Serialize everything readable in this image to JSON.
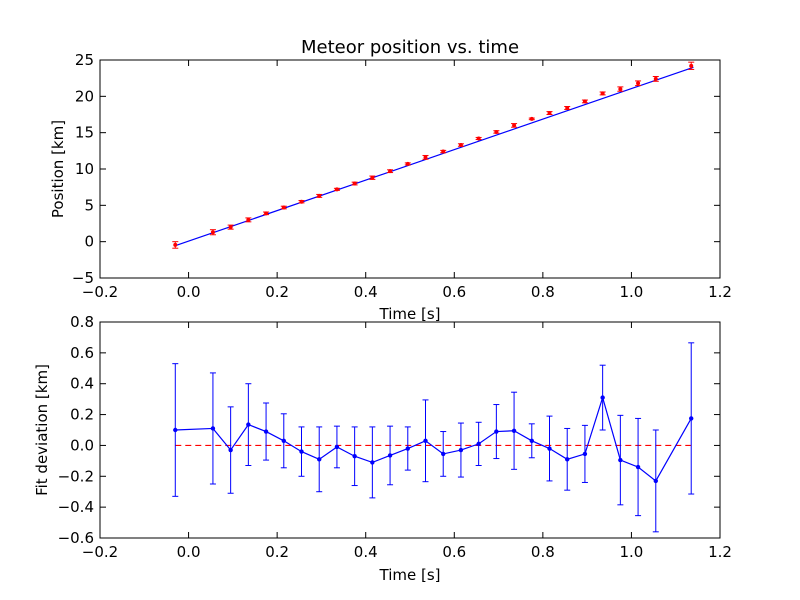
{
  "chart_data": [
    {
      "type": "scatter",
      "title": "Meteor position vs. time",
      "xlabel": "Time [s]",
      "ylabel": "Position [km]",
      "xlim": [
        -0.2,
        1.2
      ],
      "ylim": [
        -5,
        25
      ],
      "xticks": [
        "−0.2",
        "0.0",
        "0.2",
        "0.4",
        "0.6",
        "0.8",
        "1.0",
        "1.2"
      ],
      "yticks": [
        "−5",
        "0",
        "5",
        "10",
        "15",
        "20",
        "25"
      ],
      "grid": false,
      "colors": {
        "points": "#ff0000",
        "errorbars": "#ff0000",
        "fit_line": "#0000ff"
      },
      "fit_line": {
        "x": [
          -0.03,
          1.14
        ],
        "y": [
          -0.55,
          24.0
        ]
      },
      "points": {
        "x": [
          -0.03,
          0.055,
          0.095,
          0.135,
          0.175,
          0.215,
          0.255,
          0.295,
          0.335,
          0.375,
          0.415,
          0.455,
          0.495,
          0.535,
          0.575,
          0.615,
          0.655,
          0.695,
          0.735,
          0.775,
          0.815,
          0.855,
          0.895,
          0.935,
          0.975,
          1.015,
          1.055,
          1.135
        ],
        "y": [
          -0.45,
          1.3,
          2.0,
          3.0,
          3.9,
          4.7,
          5.5,
          6.3,
          7.2,
          8.0,
          8.8,
          9.7,
          10.7,
          11.6,
          12.4,
          13.3,
          14.2,
          15.1,
          16.0,
          16.9,
          17.7,
          18.4,
          19.3,
          20.4,
          21.0,
          21.8,
          22.4,
          24.2
        ],
        "yerr": [
          0.45,
          0.35,
          0.28,
          0.27,
          0.18,
          0.18,
          0.16,
          0.2,
          0.14,
          0.19,
          0.23,
          0.19,
          0.14,
          0.26,
          0.16,
          0.17,
          0.14,
          0.17,
          0.25,
          0.11,
          0.2,
          0.2,
          0.19,
          0.2,
          0.3,
          0.32,
          0.33,
          0.5
        ]
      }
    },
    {
      "type": "line",
      "xlabel": "Time [s]",
      "ylabel": "Fit deviation [km]",
      "xlim": [
        -0.2,
        1.2
      ],
      "ylim": [
        -0.6,
        0.8
      ],
      "xticks": [
        "−0.2",
        "0.0",
        "0.2",
        "0.4",
        "0.6",
        "0.8",
        "1.0",
        "1.2"
      ],
      "yticks": [
        "−0.6",
        "−0.4",
        "−0.2",
        "0.0",
        "0.2",
        "0.4",
        "0.6",
        "0.8"
      ],
      "grid": false,
      "colors": {
        "series": "#0000ff",
        "reference": "#ff0000"
      },
      "reference_line": {
        "y": 0.0,
        "style": "dashed",
        "x": [
          -0.03,
          1.14
        ]
      },
      "series": {
        "x": [
          -0.03,
          0.055,
          0.095,
          0.135,
          0.175,
          0.215,
          0.255,
          0.295,
          0.335,
          0.375,
          0.415,
          0.455,
          0.495,
          0.535,
          0.575,
          0.615,
          0.655,
          0.695,
          0.735,
          0.775,
          0.815,
          0.855,
          0.895,
          0.935,
          0.975,
          1.015,
          1.055,
          1.135
        ],
        "y": [
          0.1,
          0.11,
          -0.03,
          0.135,
          0.09,
          0.03,
          -0.04,
          -0.09,
          -0.01,
          -0.07,
          -0.11,
          -0.065,
          -0.02,
          0.03,
          -0.055,
          -0.03,
          0.01,
          0.09,
          0.095,
          0.03,
          -0.02,
          -0.09,
          -0.055,
          0.31,
          -0.095,
          -0.14,
          -0.23,
          0.175
        ],
        "yerr": [
          0.43,
          0.36,
          0.28,
          0.265,
          0.185,
          0.175,
          0.16,
          0.21,
          0.135,
          0.19,
          0.23,
          0.19,
          0.14,
          0.265,
          0.145,
          0.175,
          0.14,
          0.175,
          0.25,
          0.11,
          0.21,
          0.2,
          0.185,
          0.21,
          0.29,
          0.315,
          0.33,
          0.49
        ]
      }
    }
  ]
}
